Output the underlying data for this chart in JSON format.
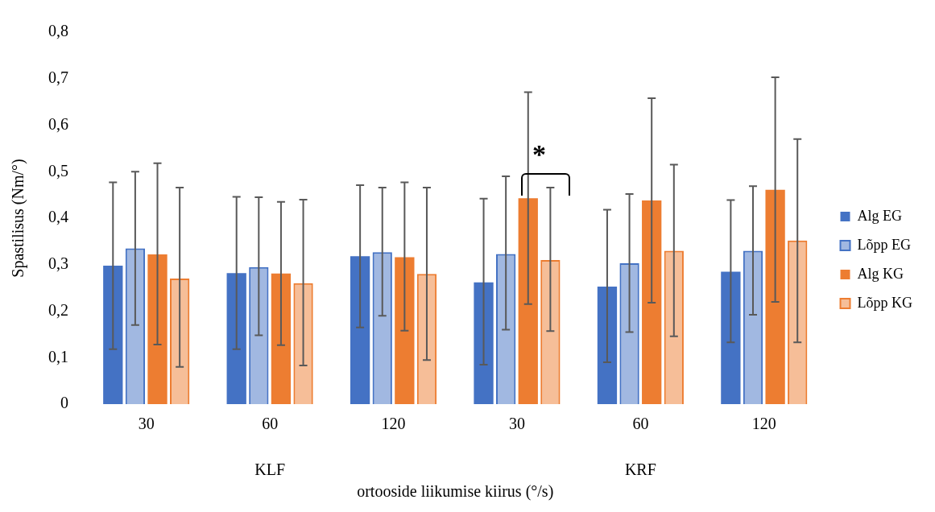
{
  "chart_data": {
    "type": "bar",
    "ylabel": "Spastilisus (Nm/°)",
    "xlabel": "ortooside liikumise kiirus (°/s)",
    "categories": [
      "30",
      "60",
      "120",
      "30",
      "60",
      "120"
    ],
    "series": [
      {
        "name": "Alg EG",
        "color": "#4472c4",
        "values": [
          0.298,
          0.282,
          0.318,
          0.262,
          0.253,
          0.285
        ],
        "errors": [
          [
            0.118,
            0.477
          ],
          [
            0.118,
            0.446
          ],
          [
            0.165,
            0.471
          ],
          [
            0.085,
            0.442
          ],
          [
            0.09,
            0.418
          ],
          [
            0.133,
            0.439
          ]
        ]
      },
      {
        "name": "Lõpp EG",
        "color": "#4472c4",
        "values": [
          0.335,
          0.295,
          0.327,
          0.323,
          0.303,
          0.33
        ],
        "errors": [
          [
            0.17,
            0.5
          ],
          [
            0.148,
            0.445
          ],
          [
            0.19,
            0.466
          ],
          [
            0.16,
            0.49
          ],
          [
            0.155,
            0.452
          ],
          [
            0.192,
            0.469
          ]
        ]
      },
      {
        "name": "Alg KG",
        "color": "#ed7d31",
        "values": [
          0.322,
          0.281,
          0.316,
          0.443,
          0.438,
          0.461
        ],
        "errors": [
          [
            0.128,
            0.518
          ],
          [
            0.127,
            0.435
          ],
          [
            0.158,
            0.477
          ],
          [
            0.215,
            0.671
          ],
          [
            0.218,
            0.658
          ],
          [
            0.22,
            0.703
          ]
        ]
      },
      {
        "name": "Lõpp KG",
        "color": "#ed7d31",
        "values": [
          0.27,
          0.26,
          0.28,
          0.31,
          0.33,
          0.352
        ],
        "errors": [
          [
            0.08,
            0.466
          ],
          [
            0.083,
            0.44
          ],
          [
            0.095,
            0.466
          ],
          [
            0.157,
            0.466
          ],
          [
            0.146,
            0.515
          ],
          [
            0.133,
            0.57
          ]
        ]
      }
    ],
    "ylim": [
      0,
      0.8
    ],
    "yticks": [
      0,
      {
        "value": 0.1,
        "label": "0,1"
      },
      {
        "value": 0.2,
        "label": "0,2"
      },
      {
        "value": 0.3,
        "label": "0,3"
      },
      {
        "value": 0.4,
        "label": "0,4"
      },
      {
        "value": 0.5,
        "label": "0,5"
      },
      {
        "value": 0.6,
        "label": "0,6"
      },
      {
        "value": 0.7,
        "label": "0,7"
      },
      {
        "value": 0.8,
        "label": "0,8"
      }
    ],
    "grid": false,
    "legend": "right",
    "annotations": [
      "KLF",
      "KRF",
      "*"
    ]
  }
}
